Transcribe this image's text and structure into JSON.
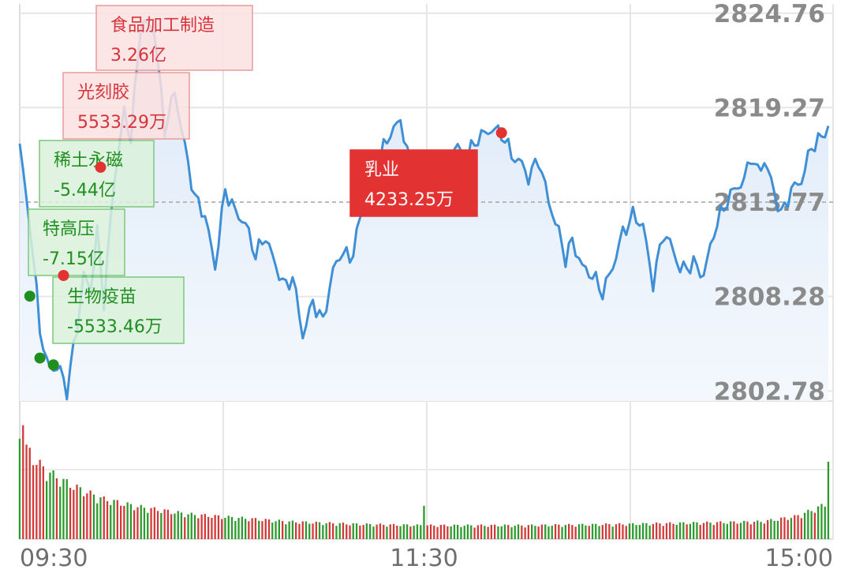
{
  "chart_data": {
    "type": "line",
    "y_ticks": [
      "2824.76",
      "2819.27",
      "2813.77",
      "2808.28",
      "2802.78"
    ],
    "y_values": [
      2824.76,
      2819.27,
      2813.77,
      2808.28,
      2802.78
    ],
    "reference_level": 2813.77,
    "ylim": [
      2802.2,
      2825.3
    ],
    "x_ticks": [
      "09:30",
      "11:30",
      "15:00"
    ],
    "x_tick_positions": [
      0,
      120,
      240
    ],
    "n_minutes": 241,
    "colors": {
      "line": "#3f8fd6",
      "fill_top": "#dce9f8",
      "fill_bottom": "#f4f8fd",
      "up": "#d23a3a",
      "down": "#2c9a2c",
      "grid": "#e6e6e6",
      "ref": "#aaaaaa"
    },
    "price_anchors": [
      [
        0,
        2817.0
      ],
      [
        3,
        2812.5
      ],
      [
        6,
        2806.5
      ],
      [
        8,
        2804.3
      ],
      [
        12,
        2804.0
      ],
      [
        14,
        2802.8
      ],
      [
        17,
        2806.5
      ],
      [
        19,
        2809.5
      ],
      [
        21,
        2808.7
      ],
      [
        23,
        2812.0
      ],
      [
        25,
        2808.0
      ],
      [
        28,
        2815.0
      ],
      [
        31,
        2819.0
      ],
      [
        33,
        2817.5
      ],
      [
        36,
        2824.3
      ],
      [
        40,
        2823.8
      ],
      [
        43,
        2818.0
      ],
      [
        46,
        2820.2
      ],
      [
        49,
        2817.0
      ],
      [
        52,
        2814.0
      ],
      [
        55,
        2813.0
      ],
      [
        58,
        2810.0
      ],
      [
        61,
        2814.5
      ],
      [
        64,
        2813.2
      ],
      [
        67,
        2812.5
      ],
      [
        70,
        2810.7
      ],
      [
        73,
        2811.8
      ],
      [
        76,
        2810.0
      ],
      [
        79,
        2808.8
      ],
      [
        81,
        2809.5
      ],
      [
        84,
        2806.0
      ],
      [
        87,
        2808.0
      ],
      [
        90,
        2806.8
      ],
      [
        93,
        2809.8
      ],
      [
        96,
        2811.0
      ],
      [
        98,
        2810.3
      ],
      [
        102,
        2813.5
      ],
      [
        106,
        2816.0
      ],
      [
        110,
        2817.8
      ],
      [
        113,
        2818.5
      ],
      [
        116,
        2816.0
      ],
      [
        119,
        2814.5
      ],
      [
        122,
        2816.0
      ],
      [
        125,
        2815.7
      ],
      [
        127,
        2816.5
      ],
      [
        130,
        2817.0
      ],
      [
        132,
        2816.2
      ],
      [
        136,
        2817.5
      ],
      [
        140,
        2818.0
      ],
      [
        143,
        2817.8
      ],
      [
        146,
        2816.5
      ],
      [
        149,
        2816.0
      ],
      [
        151,
        2815.2
      ],
      [
        154,
        2816.3
      ],
      [
        157,
        2813.8
      ],
      [
        160,
        2812.0
      ],
      [
        162,
        2810.5
      ],
      [
        164,
        2811.5
      ],
      [
        167,
        2810.0
      ],
      [
        170,
        2809.5
      ],
      [
        173,
        2808.5
      ],
      [
        176,
        2810.0
      ],
      [
        179,
        2812.0
      ],
      [
        182,
        2813.0
      ],
      [
        185,
        2812.4
      ],
      [
        188,
        2809.0
      ],
      [
        191,
        2812.0
      ],
      [
        194,
        2811.0
      ],
      [
        196,
        2809.8
      ],
      [
        200,
        2810.2
      ],
      [
        203,
        2809.5
      ],
      [
        206,
        2812.0
      ],
      [
        209,
        2813.5
      ],
      [
        212,
        2814.5
      ],
      [
        215,
        2815.0
      ],
      [
        217,
        2816.5
      ],
      [
        219,
        2815.5
      ],
      [
        221,
        2816.2
      ],
      [
        223,
        2815.0
      ],
      [
        226,
        2813.0
      ],
      [
        229,
        2814.5
      ],
      [
        232,
        2815.0
      ],
      [
        235,
        2817.0
      ],
      [
        238,
        2817.5
      ],
      [
        240,
        2818.2
      ]
    ],
    "volume_anchors": [
      [
        0,
        85
      ],
      [
        1,
        100
      ],
      [
        2,
        72
      ],
      [
        3,
        70
      ],
      [
        5,
        62
      ],
      [
        8,
        55
      ],
      [
        12,
        48
      ],
      [
        18,
        40
      ],
      [
        25,
        32
      ],
      [
        35,
        26
      ],
      [
        50,
        20
      ],
      [
        65,
        17
      ],
      [
        80,
        14
      ],
      [
        100,
        12
      ],
      [
        120,
        11
      ],
      [
        150,
        11
      ],
      [
        180,
        12
      ],
      [
        200,
        13
      ],
      [
        220,
        14
      ],
      [
        230,
        18
      ],
      [
        236,
        24
      ],
      [
        239,
        28
      ],
      [
        240,
        58
      ]
    ],
    "volume_spikes": [
      {
        "minute": 120,
        "value": 25
      },
      {
        "minute": 240,
        "value": 58
      }
    ],
    "annotations": [
      {
        "title": "食品加工制造",
        "value": "3.26亿",
        "style": "pink",
        "minute": null
      },
      {
        "title": "光刻胶",
        "value": "5533.29万",
        "style": "pink",
        "minute": 24
      },
      {
        "title": "稀土永磁",
        "value": "-5.44亿",
        "style": "green",
        "minute": 3
      },
      {
        "title": "特高压",
        "value": "-7.15亿",
        "style": "green",
        "minute": 8
      },
      {
        "title": "生物疫苗",
        "value": "-5533.46万",
        "style": "green",
        "minute": 12
      },
      {
        "title": "乳业",
        "value": "4233.25万",
        "style": "red",
        "minute": 143
      }
    ],
    "markers": [
      {
        "minute": 3,
        "value": 2808.3,
        "color": "green"
      },
      {
        "minute": 6,
        "value": 2804.7,
        "color": "green"
      },
      {
        "minute": 10,
        "value": 2804.3,
        "color": "green"
      },
      {
        "minute": 13,
        "value": 2809.5,
        "color": "red"
      },
      {
        "minute": 24,
        "value": 2815.8,
        "color": "red"
      },
      {
        "minute": 143,
        "value": 2817.8,
        "color": "red"
      }
    ]
  }
}
